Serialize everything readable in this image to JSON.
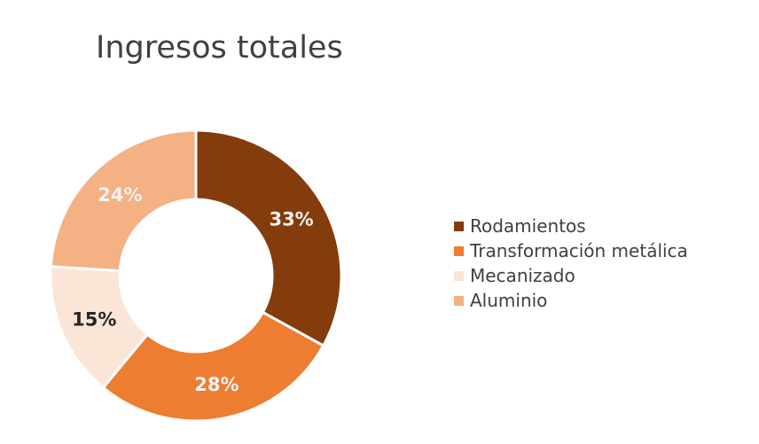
{
  "chart_data": {
    "type": "pie",
    "variant": "donut",
    "title": "Ingresos totales",
    "categories": [
      "Rodamientos",
      "Transformación metálica",
      "Mecanizado",
      "Aluminio"
    ],
    "values": [
      33,
      28,
      15,
      24
    ],
    "labels": [
      "33%",
      "28%",
      "15%",
      "24%"
    ],
    "colors": [
      "#843C0C",
      "#ED7D31",
      "#FBE5D6",
      "#F4B183"
    ],
    "label_colors": [
      "#F2F2F2",
      "#F2F2F2",
      "#262626",
      "#F2F2F2"
    ],
    "legend_position": "right",
    "start_angle": "top",
    "direction": "clockwise"
  }
}
